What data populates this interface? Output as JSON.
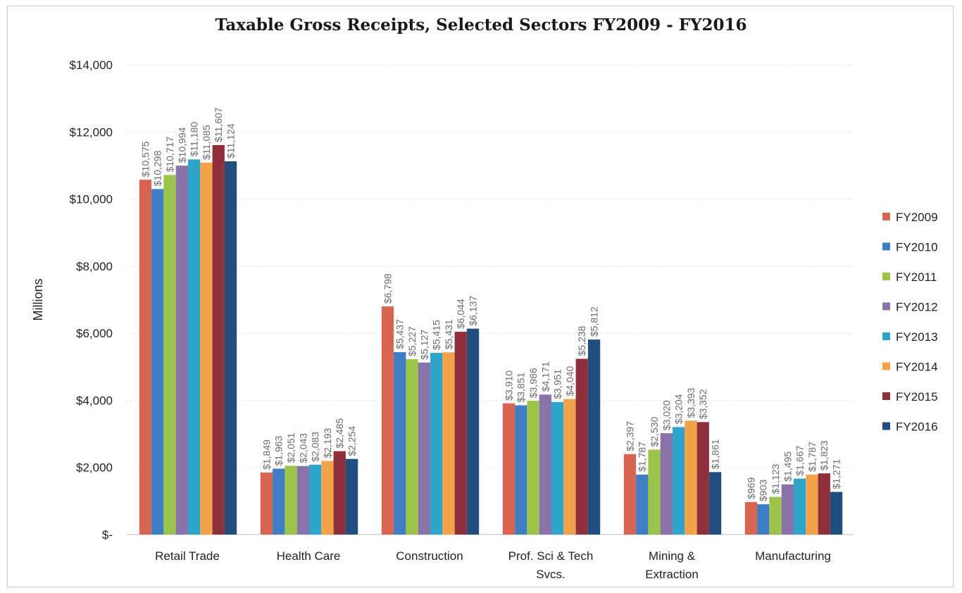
{
  "chart_data": {
    "type": "bar",
    "title": "Taxable Gross Receipts, Selected Sectors FY2009 - FY2016",
    "xlabel": "",
    "ylabel": "Millions",
    "ylim": [
      0,
      14000
    ],
    "yticks": [
      0,
      2000,
      4000,
      6000,
      8000,
      10000,
      12000,
      14000
    ],
    "ytick_labels": [
      "$-",
      "$2,000",
      "$4,000",
      "$6,000",
      "$8,000",
      "$10,000",
      "$12,000",
      "$14,000"
    ],
    "grid": true,
    "legend_position": "right",
    "categories": [
      [
        "Retail Trade"
      ],
      [
        "Health Care"
      ],
      [
        "Construction"
      ],
      [
        "Prof. Sci & Tech",
        "Svcs."
      ],
      [
        "Mining &",
        "Extraction"
      ],
      [
        "Manufacturing"
      ]
    ],
    "series": [
      {
        "name": "FY2009",
        "color": "#d9644f",
        "values": [
          10575,
          1849,
          6798,
          3910,
          2397,
          969
        ],
        "labels": [
          "$10,575",
          "$1,849",
          "$6,798",
          "$3,910",
          "$2,397",
          "$969"
        ]
      },
      {
        "name": "FY2010",
        "color": "#3f7dc4",
        "values": [
          10298,
          1963,
          5437,
          3851,
          1787,
          903
        ],
        "labels": [
          "$10,298",
          "$1,963",
          "$5,437",
          "$3,851",
          "$1,787",
          "$903"
        ]
      },
      {
        "name": "FY2011",
        "color": "#9dc44a",
        "values": [
          10717,
          2051,
          5227,
          3986,
          2530,
          1123
        ],
        "labels": [
          "$10,717",
          "$2,051",
          "$5,227",
          "$3,986",
          "$2,530",
          "$1,123"
        ]
      },
      {
        "name": "FY2012",
        "color": "#8a72ab",
        "values": [
          10994,
          2043,
          5127,
          4171,
          3020,
          1495
        ],
        "labels": [
          "$10,994",
          "$2,043",
          "$5,127",
          "$4,171",
          "$3,020",
          "$1,495"
        ]
      },
      {
        "name": "FY2013",
        "color": "#2fa5cc",
        "values": [
          11180,
          2083,
          5415,
          3951,
          3204,
          1667
        ],
        "labels": [
          "$11,180",
          "$2,083",
          "$5,415",
          "$3,951",
          "$3,204",
          "$1,667"
        ]
      },
      {
        "name": "FY2014",
        "color": "#f2a34a",
        "values": [
          11085,
          2193,
          5431,
          4040,
          3393,
          1787
        ],
        "labels": [
          "$11,085",
          "$2,193",
          "$5,431",
          "$4,040",
          "$3,393",
          "$1,787"
        ]
      },
      {
        "name": "FY2015",
        "color": "#8e2f3b",
        "values": [
          11607,
          2485,
          6044,
          5238,
          3352,
          1823
        ],
        "labels": [
          "$11,607",
          "$2,485",
          "$6,044",
          "$5,238",
          "$3,352",
          "$1,823"
        ]
      },
      {
        "name": "FY2016",
        "color": "#1f4e7f",
        "values": [
          11124,
          2254,
          6137,
          5812,
          1861,
          1271
        ],
        "labels": [
          "$11,124",
          "$2,254",
          "$6,137",
          "$5,812",
          "$1,861",
          "$1,271"
        ]
      }
    ]
  }
}
